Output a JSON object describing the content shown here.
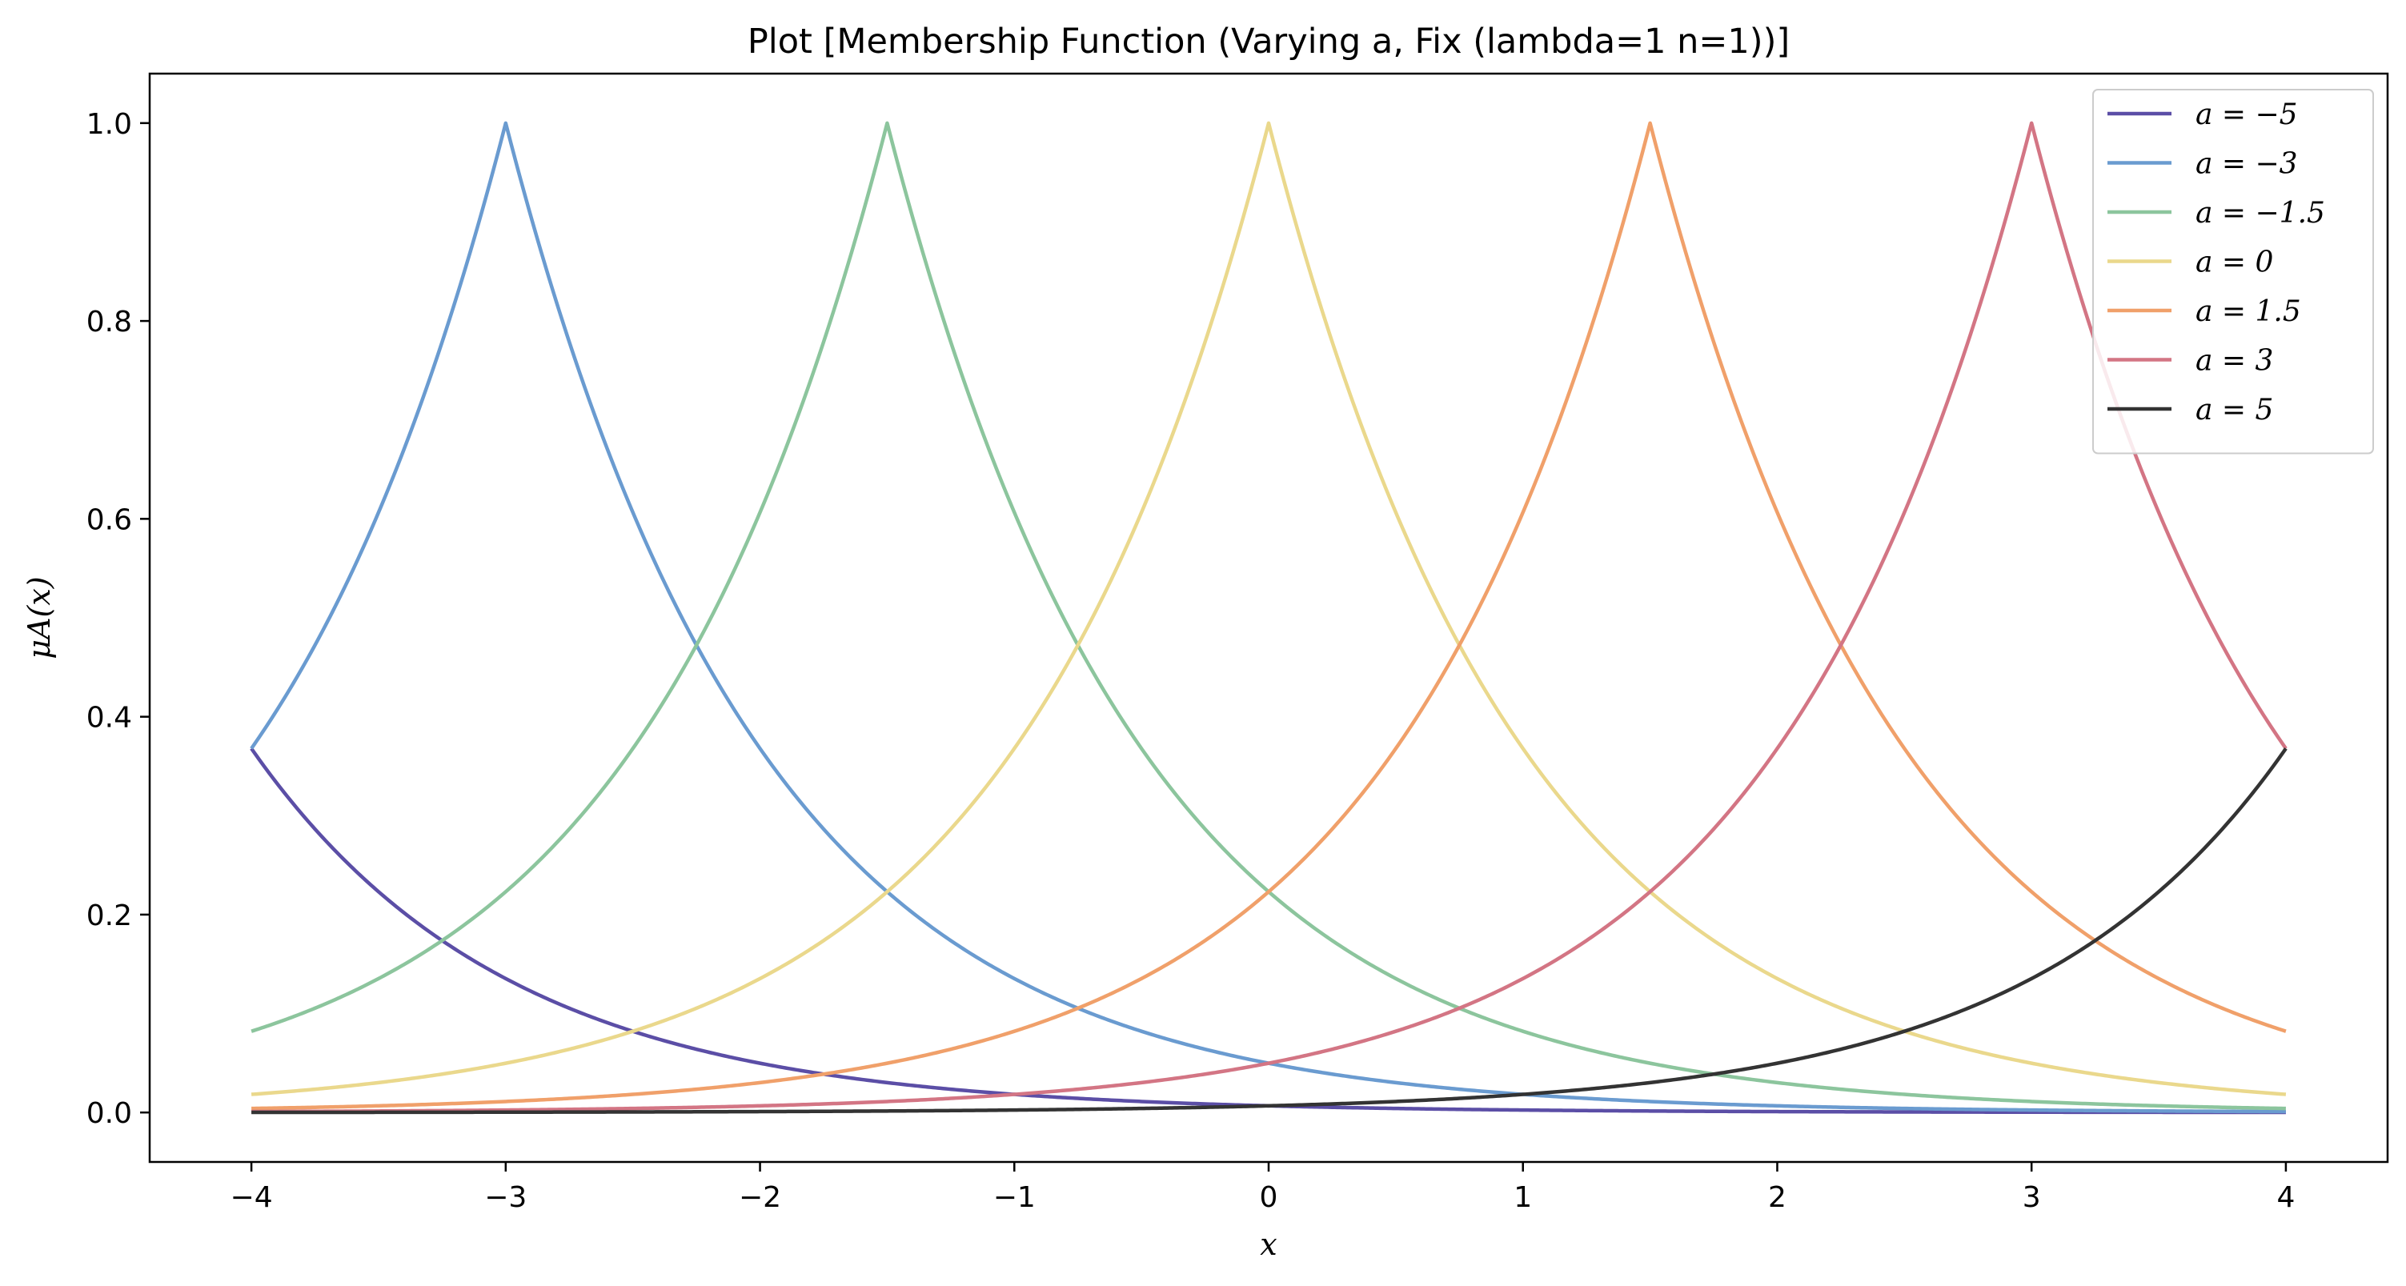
{
  "chart_data": {
    "type": "line",
    "title": "Plot [Membership Function (Varying a, Fix (lambda=1 n=1))]",
    "xlabel": "x",
    "ylabel": "μA(x)",
    "xlim": [
      -4.4,
      4.4
    ],
    "ylim": [
      -0.05,
      1.05
    ],
    "xticks": [
      -4,
      -3,
      -2,
      -1,
      0,
      1,
      2,
      3,
      4
    ],
    "xtick_labels": [
      "−4",
      "−3",
      "−2",
      "−1",
      "0",
      "1",
      "2",
      "3",
      "4"
    ],
    "yticks": [
      0.0,
      0.2,
      0.4,
      0.6,
      0.8,
      1.0
    ],
    "ytick_labels": [
      "0.0",
      "0.2",
      "0.4",
      "0.6",
      "0.8",
      "1.0"
    ],
    "grid": false,
    "legend_position": "top-right",
    "function": "mu = exp(-lambda * |x - a|^n)",
    "lambda": 1,
    "n": 1,
    "x_range": [
      -4,
      4
    ],
    "series": [
      {
        "name": "a = −5",
        "a": -5,
        "color": "#5b4ea6"
      },
      {
        "name": "a = −3",
        "a": -3,
        "color": "#6a9bd0"
      },
      {
        "name": "a = −1.5",
        "a": -1.5,
        "color": "#8cc59d"
      },
      {
        "name": "a = 0",
        "a": 0,
        "color": "#ead88c"
      },
      {
        "name": "a = 1.5",
        "a": 1.5,
        "color": "#f0a06a"
      },
      {
        "name": "a = 3",
        "a": 3,
        "color": "#d37584"
      },
      {
        "name": "a = 5",
        "a": 5,
        "color": "#333333"
      }
    ]
  }
}
